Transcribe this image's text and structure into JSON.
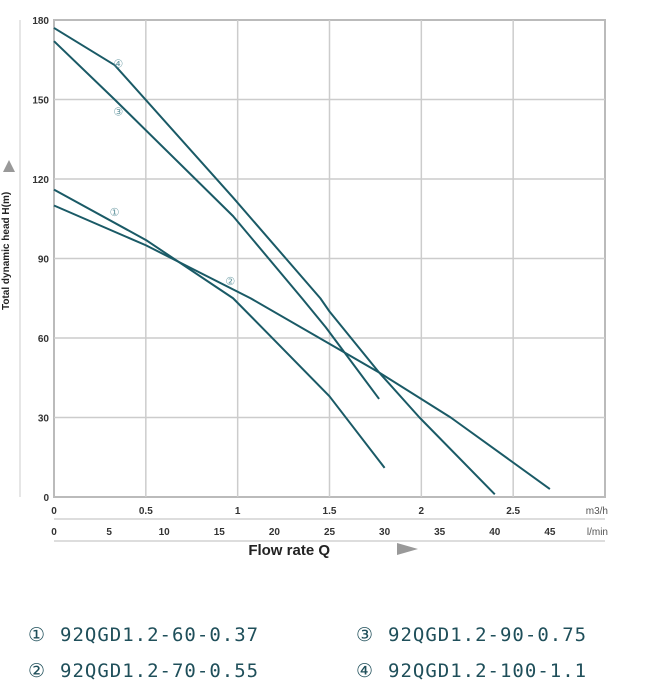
{
  "chart_data": {
    "type": "line",
    "ylabel": "Total dynamic head H(m)",
    "xlabel": "Flow rate Q",
    "x_unit": "m3/h",
    "x2_unit": "l/min",
    "xlim": [
      0,
      3
    ],
    "ylim": [
      0,
      180
    ],
    "xticks": [
      "0",
      "0.5",
      "1",
      "1.5",
      "2",
      "2.5"
    ],
    "xtick_values": [
      0,
      0.5,
      1,
      1.5,
      2,
      2.5
    ],
    "x2ticks": [
      "0",
      "5",
      "10",
      "15",
      "20",
      "25",
      "30",
      "35",
      "40",
      "45"
    ],
    "yticks": [
      "0",
      "30",
      "60",
      "90",
      "120",
      "150",
      "180"
    ],
    "ytick_values": [
      0,
      30,
      60,
      90,
      120,
      150,
      180
    ],
    "grid": true,
    "line_color": "#1a5a66",
    "series": [
      {
        "name": "①",
        "label_at": [
          0.33,
          106
        ],
        "points": [
          [
            0,
            116
          ],
          [
            0.5,
            97
          ],
          [
            0.975,
            75
          ],
          [
            1.16,
            62
          ],
          [
            1.5,
            38
          ],
          [
            1.8,
            11
          ]
        ]
      },
      {
        "name": "②",
        "label_at": [
          0.96,
          80
        ],
        "points": [
          [
            0,
            110
          ],
          [
            0.5,
            95
          ],
          [
            1.07,
            75
          ],
          [
            1.57,
            55
          ],
          [
            1.77,
            47
          ],
          [
            2.16,
            30
          ],
          [
            2.7,
            3
          ]
        ]
      },
      {
        "name": "③",
        "label_at": [
          0.35,
          144
        ],
        "points": [
          [
            0,
            172
          ],
          [
            0.33,
            150
          ],
          [
            0.975,
            106
          ],
          [
            1.35,
            75
          ],
          [
            1.48,
            64
          ],
          [
            1.77,
            37
          ]
        ]
      },
      {
        "name": "④",
        "label_at": [
          0.35,
          162
        ],
        "points": [
          [
            0,
            177
          ],
          [
            0.33,
            163
          ],
          [
            0.975,
            113
          ],
          [
            1.45,
            75
          ],
          [
            1.5,
            70
          ],
          [
            1.77,
            47
          ],
          [
            1.99,
            30
          ],
          [
            2.4,
            1
          ]
        ]
      }
    ]
  },
  "legend": [
    {
      "num": "①",
      "model": "92QGD1.2-60-0.37"
    },
    {
      "num": "③",
      "model": "92QGD1.2-90-0.75"
    },
    {
      "num": "②",
      "model": "92QGD1.2-70-0.55"
    },
    {
      "num": "④",
      "model": "92QGD1.2-100-1.1"
    }
  ]
}
